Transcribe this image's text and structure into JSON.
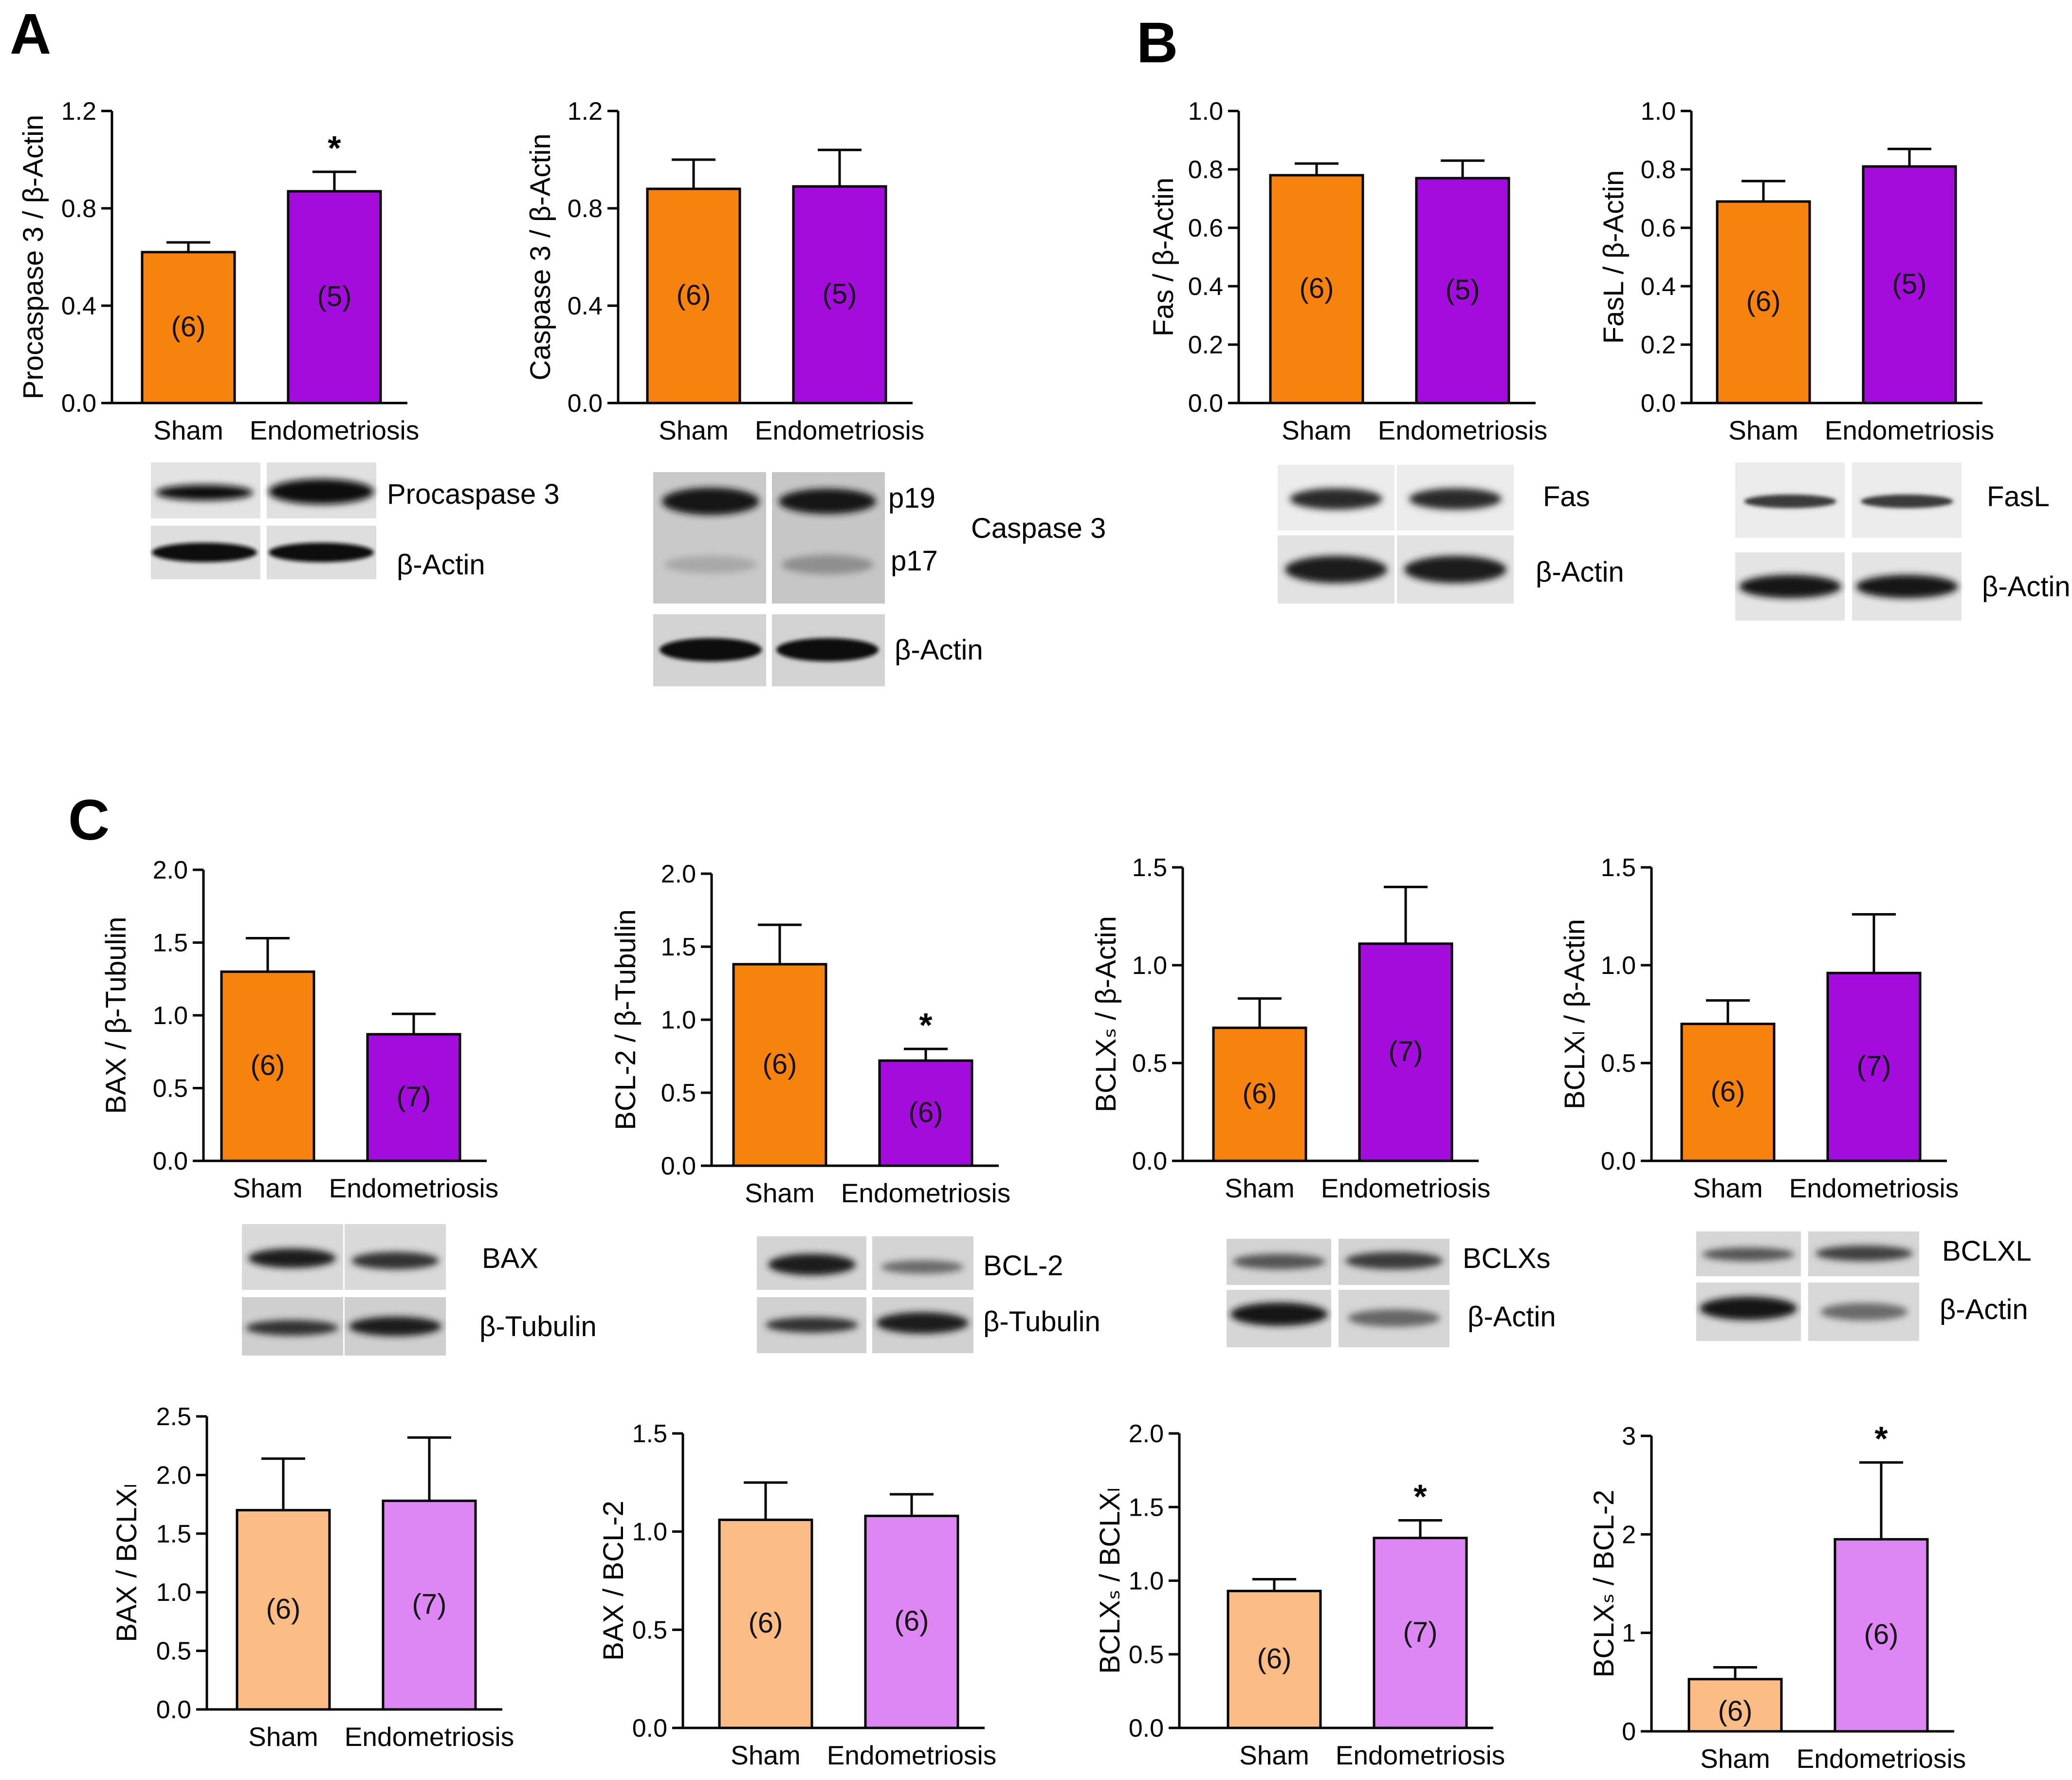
{
  "panel_labels": [
    "A",
    "B",
    "C"
  ],
  "colors": {
    "sham": "#f7820e",
    "endometriosis": "#a40bdd",
    "sham_light": "#fbbd85",
    "endometriosis_light": "#de86f4",
    "band": "#0d0d0d"
  },
  "chart_data": [
    {
      "type": "bar",
      "panel": "A",
      "ylabel": "Procaspase 3 / β-Actin",
      "categories": [
        "Sham",
        "Endometriosis"
      ],
      "values": [
        0.62,
        0.87
      ],
      "errors": [
        0.04,
        0.08
      ],
      "n": [
        "(6)",
        "(5)"
      ],
      "significance": [
        "",
        "*"
      ],
      "ylim": [
        0,
        1.2
      ],
      "yticks": [
        "0.0",
        "0.4",
        "0.8",
        "1.2"
      ],
      "style": "dark"
    },
    {
      "type": "bar",
      "panel": "A",
      "ylabel": "Caspase 3 / β-Actin",
      "categories": [
        "Sham",
        "Endometriosis"
      ],
      "values": [
        0.88,
        0.89
      ],
      "errors": [
        0.12,
        0.15
      ],
      "n": [
        "(6)",
        "(5)"
      ],
      "significance": [
        "",
        ""
      ],
      "ylim": [
        0,
        1.2
      ],
      "yticks": [
        "0.0",
        "0.4",
        "0.8",
        "1.2"
      ],
      "style": "dark"
    },
    {
      "type": "bar",
      "panel": "B",
      "ylabel": "Fas / β-Actin",
      "categories": [
        "Sham",
        "Endometriosis"
      ],
      "values": [
        0.78,
        0.77
      ],
      "errors": [
        0.04,
        0.06
      ],
      "n": [
        "(6)",
        "(5)"
      ],
      "significance": [
        "",
        ""
      ],
      "ylim": [
        0,
        1.0
      ],
      "yticks": [
        "0.0",
        "0.2",
        "0.4",
        "0.6",
        "0.8",
        "1.0"
      ],
      "style": "dark"
    },
    {
      "type": "bar",
      "panel": "B",
      "ylabel": "FasL / β-Actin",
      "categories": [
        "Sham",
        "Endometriosis"
      ],
      "values": [
        0.69,
        0.81
      ],
      "errors": [
        0.07,
        0.06
      ],
      "n": [
        "(6)",
        "(5)"
      ],
      "significance": [
        "",
        ""
      ],
      "ylim": [
        0,
        1.0
      ],
      "yticks": [
        "0.0",
        "0.2",
        "0.4",
        "0.6",
        "0.8",
        "1.0"
      ],
      "style": "dark"
    },
    {
      "type": "bar",
      "panel": "C",
      "ylabel": "BAX / β-Tubulin",
      "categories": [
        "Sham",
        "Endometriosis"
      ],
      "values": [
        1.3,
        0.87
      ],
      "errors": [
        0.23,
        0.14
      ],
      "n": [
        "(6)",
        "(7)"
      ],
      "significance": [
        "",
        ""
      ],
      "ylim": [
        0,
        2.0
      ],
      "yticks": [
        "0.0",
        "0.5",
        "1.0",
        "1.5",
        "2.0"
      ],
      "style": "dark"
    },
    {
      "type": "bar",
      "panel": "C",
      "ylabel": "BCL-2 / β-Tubulin",
      "categories": [
        "Sham",
        "Endometriosis"
      ],
      "values": [
        1.38,
        0.72
      ],
      "errors": [
        0.27,
        0.08
      ],
      "n": [
        "(6)",
        "(6)"
      ],
      "significance": [
        "",
        "*"
      ],
      "ylim": [
        0,
        2.0
      ],
      "yticks": [
        "0.0",
        "0.5",
        "1.0",
        "1.5",
        "2.0"
      ],
      "style": "dark"
    },
    {
      "type": "bar",
      "panel": "C",
      "ylabel": "BCLXₛ / β-Actin",
      "categories": [
        "Sham",
        "Endometriosis"
      ],
      "values": [
        0.68,
        1.11
      ],
      "errors": [
        0.15,
        0.29
      ],
      "n": [
        "(6)",
        "(7)"
      ],
      "significance": [
        "",
        ""
      ],
      "ylim": [
        0,
        1.5
      ],
      "yticks": [
        "0.0",
        "0.5",
        "1.0",
        "1.5"
      ],
      "style": "dark"
    },
    {
      "type": "bar",
      "panel": "C",
      "ylabel": "BCLXₗ / β-Actin",
      "categories": [
        "Sham",
        "Endometriosis"
      ],
      "values": [
        0.7,
        0.96
      ],
      "errors": [
        0.12,
        0.3
      ],
      "n": [
        "(6)",
        "(7)"
      ],
      "significance": [
        "",
        ""
      ],
      "ylim": [
        0,
        1.5
      ],
      "yticks": [
        "0.0",
        "0.5",
        "1.0",
        "1.5"
      ],
      "style": "dark"
    },
    {
      "type": "bar",
      "panel": "C",
      "ylabel": "BAX / BCLXₗ",
      "categories": [
        "Sham",
        "Endometriosis"
      ],
      "values": [
        1.7,
        1.78
      ],
      "errors": [
        0.44,
        0.54
      ],
      "n": [
        "(6)",
        "(7)"
      ],
      "significance": [
        "",
        ""
      ],
      "ylim": [
        0,
        2.5
      ],
      "yticks": [
        "0.0",
        "0.5",
        "1.0",
        "1.5",
        "2.0",
        "2.5"
      ],
      "style": "light"
    },
    {
      "type": "bar",
      "panel": "C",
      "ylabel": "BAX / BCL-2",
      "categories": [
        "Sham",
        "Endometriosis"
      ],
      "values": [
        1.06,
        1.08
      ],
      "errors": [
        0.19,
        0.11
      ],
      "n": [
        "(6)",
        "(6)"
      ],
      "significance": [
        "",
        ""
      ],
      "ylim": [
        0,
        1.5
      ],
      "yticks": [
        "0.0",
        "0.5",
        "1.0",
        "1.5"
      ],
      "style": "light"
    },
    {
      "type": "bar",
      "panel": "C",
      "ylabel": "BCLXₛ / BCLXₗ",
      "categories": [
        "Sham",
        "Endometriosis"
      ],
      "values": [
        0.93,
        1.29
      ],
      "errors": [
        0.08,
        0.12
      ],
      "n": [
        "(6)",
        "(7)"
      ],
      "significance": [
        "",
        "*"
      ],
      "ylim": [
        0,
        2.0
      ],
      "yticks": [
        "0.0",
        "0.5",
        "1.0",
        "1.5",
        "2.0"
      ],
      "style": "light"
    },
    {
      "type": "bar",
      "panel": "C",
      "ylabel": "BCLXₛ / BCL-2",
      "categories": [
        "Sham",
        "Endometriosis"
      ],
      "values": [
        0.53,
        1.95
      ],
      "errors": [
        0.12,
        0.78
      ],
      "n": [
        "(6)",
        "(6)"
      ],
      "significance": [
        "",
        "*"
      ],
      "ylim": [
        0,
        3
      ],
      "yticks": [
        "0",
        "1",
        "2",
        "3"
      ],
      "style": "light"
    }
  ],
  "blots": [
    {
      "labels": [
        "Procaspase 3",
        "β-Actin"
      ]
    },
    {
      "labels": [
        "p19",
        "p17",
        "Caspase 3",
        "β-Actin"
      ]
    },
    {
      "labels": [
        "Fas",
        "β-Actin"
      ]
    },
    {
      "labels": [
        "FasL",
        "β-Actin"
      ]
    },
    {
      "labels": [
        "BAX",
        "β-Tubulin"
      ]
    },
    {
      "labels": [
        "BCL-2",
        "β-Tubulin"
      ]
    },
    {
      "labels": [
        "BCLXs",
        "β-Actin"
      ]
    },
    {
      "labels": [
        "BCLXL",
        "β-Actin"
      ]
    }
  ]
}
